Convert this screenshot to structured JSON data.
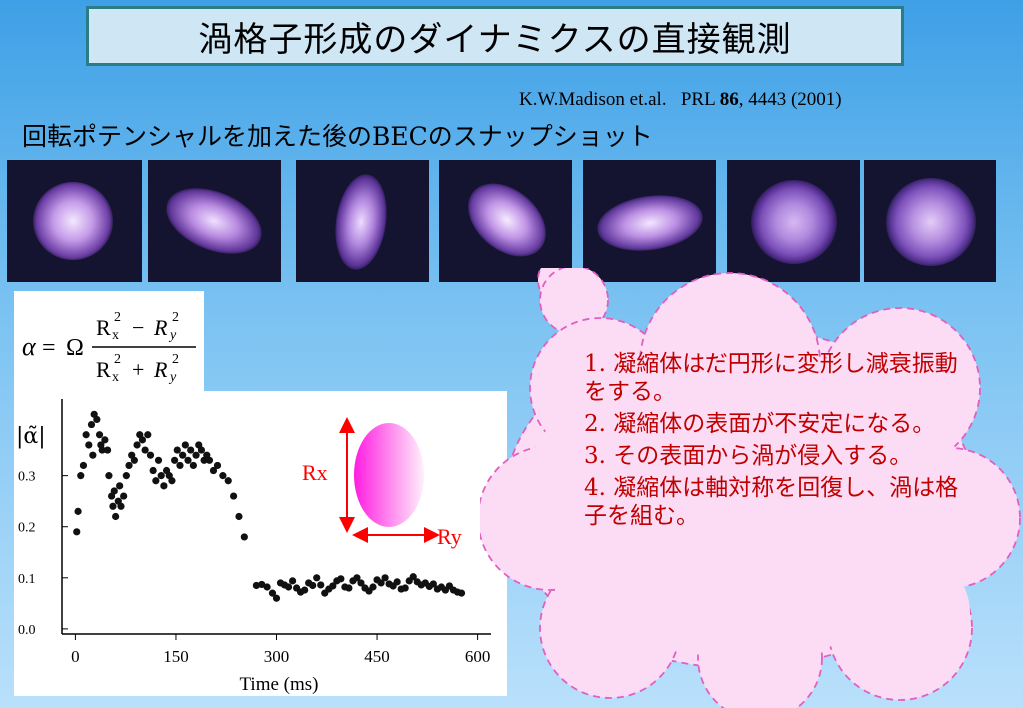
{
  "title": "渦格子形成のダイナミクスの直接観測",
  "citation": {
    "authors": "K.W.Madison et.al.",
    "journal": "PRL",
    "volume": "86",
    "rest": ", 4443 (2001)"
  },
  "subtitle": "回転ポテンシャルを加えた後のBECのスナップショット",
  "snapshots": [
    {
      "name": "snapshot-1"
    },
    {
      "name": "snapshot-2"
    },
    {
      "name": "snapshot-3"
    },
    {
      "name": "snapshot-4"
    },
    {
      "name": "snapshot-5"
    },
    {
      "name": "snapshot-6"
    },
    {
      "name": "snapshot-7"
    }
  ],
  "formula": {
    "lhs": "α",
    "eq": "=",
    "omega": "Ω",
    "num": "R x 2 − R y 2",
    "den": "R x 2 + R y 2"
  },
  "diagram": {
    "rx_label": "Rx",
    "ry_label": "Ry"
  },
  "chart_data": {
    "type": "scatter",
    "ylabel": "|α̃|",
    "xlabel": "Time (ms)",
    "xlim": [
      -20,
      620
    ],
    "ylim": [
      -0.01,
      0.45
    ],
    "xticks": [
      0,
      150,
      300,
      450,
      600
    ],
    "yticks": [
      "0.0",
      "0.1",
      "0.2",
      "0.3"
    ],
    "ytick_values": [
      0.0,
      0.1,
      0.2,
      0.3
    ],
    "points": [
      [
        2,
        0.19
      ],
      [
        4,
        0.23
      ],
      [
        8,
        0.3
      ],
      [
        12,
        0.32
      ],
      [
        16,
        0.38
      ],
      [
        20,
        0.36
      ],
      [
        24,
        0.4
      ],
      [
        26,
        0.34
      ],
      [
        28,
        0.42
      ],
      [
        32,
        0.41
      ],
      [
        36,
        0.38
      ],
      [
        38,
        0.36
      ],
      [
        40,
        0.35
      ],
      [
        44,
        0.37
      ],
      [
        48,
        0.35
      ],
      [
        50,
        0.3
      ],
      [
        54,
        0.26
      ],
      [
        56,
        0.24
      ],
      [
        58,
        0.27
      ],
      [
        60,
        0.22
      ],
      [
        64,
        0.25
      ],
      [
        66,
        0.28
      ],
      [
        68,
        0.24
      ],
      [
        72,
        0.26
      ],
      [
        76,
        0.3
      ],
      [
        80,
        0.32
      ],
      [
        84,
        0.34
      ],
      [
        88,
        0.33
      ],
      [
        92,
        0.36
      ],
      [
        96,
        0.38
      ],
      [
        100,
        0.37
      ],
      [
        104,
        0.35
      ],
      [
        108,
        0.38
      ],
      [
        112,
        0.34
      ],
      [
        116,
        0.31
      ],
      [
        120,
        0.29
      ],
      [
        124,
        0.33
      ],
      [
        128,
        0.3
      ],
      [
        132,
        0.28
      ],
      [
        136,
        0.31
      ],
      [
        140,
        0.3
      ],
      [
        144,
        0.29
      ],
      [
        148,
        0.33
      ],
      [
        152,
        0.35
      ],
      [
        156,
        0.32
      ],
      [
        160,
        0.34
      ],
      [
        164,
        0.36
      ],
      [
        168,
        0.33
      ],
      [
        172,
        0.35
      ],
      [
        176,
        0.32
      ],
      [
        180,
        0.34
      ],
      [
        184,
        0.36
      ],
      [
        188,
        0.35
      ],
      [
        192,
        0.33
      ],
      [
        196,
        0.34
      ],
      [
        200,
        0.33
      ],
      [
        206,
        0.31
      ],
      [
        212,
        0.32
      ],
      [
        220,
        0.3
      ],
      [
        228,
        0.29
      ],
      [
        236,
        0.26
      ],
      [
        244,
        0.22
      ],
      [
        252,
        0.18
      ],
      [
        270,
        0.085
      ],
      [
        278,
        0.087
      ],
      [
        286,
        0.082
      ],
      [
        294,
        0.07
      ],
      [
        300,
        0.06
      ],
      [
        306,
        0.09
      ],
      [
        312,
        0.086
      ],
      [
        318,
        0.082
      ],
      [
        324,
        0.094
      ],
      [
        330,
        0.08
      ],
      [
        336,
        0.072
      ],
      [
        342,
        0.076
      ],
      [
        348,
        0.09
      ],
      [
        354,
        0.085
      ],
      [
        360,
        0.1
      ],
      [
        366,
        0.086
      ],
      [
        372,
        0.07
      ],
      [
        378,
        0.078
      ],
      [
        384,
        0.084
      ],
      [
        390,
        0.094
      ],
      [
        396,
        0.098
      ],
      [
        402,
        0.082
      ],
      [
        408,
        0.08
      ],
      [
        414,
        0.094
      ],
      [
        420,
        0.1
      ],
      [
        426,
        0.09
      ],
      [
        432,
        0.08
      ],
      [
        438,
        0.074
      ],
      [
        444,
        0.082
      ],
      [
        450,
        0.096
      ],
      [
        456,
        0.09
      ],
      [
        462,
        0.1
      ],
      [
        468,
        0.088
      ],
      [
        474,
        0.084
      ],
      [
        480,
        0.092
      ],
      [
        486,
        0.078
      ],
      [
        492,
        0.08
      ],
      [
        498,
        0.094
      ],
      [
        504,
        0.102
      ],
      [
        510,
        0.092
      ],
      [
        516,
        0.086
      ],
      [
        522,
        0.09
      ],
      [
        528,
        0.083
      ],
      [
        534,
        0.088
      ],
      [
        540,
        0.078
      ],
      [
        546,
        0.082
      ],
      [
        552,
        0.076
      ],
      [
        558,
        0.084
      ],
      [
        564,
        0.076
      ],
      [
        570,
        0.072
      ],
      [
        576,
        0.07
      ]
    ]
  },
  "cloud_text": [
    "1. 凝縮体はだ円形に変形し減衰振動をする。",
    "2. 凝縮体の表面が不安定になる。",
    "3. その表面から渦が侵入する。",
    "4. 凝縮体は軸対称を回復し、渦は格子を組む。"
  ]
}
